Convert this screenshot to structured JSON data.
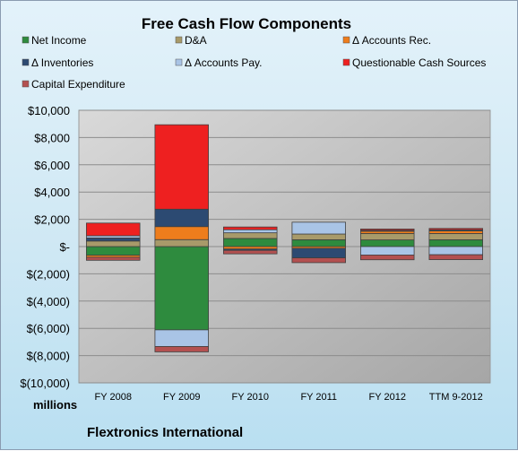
{
  "chart_data": {
    "type": "bar",
    "stacked": true,
    "title": "Free Cash Flow Components",
    "categories": [
      "FY 2008",
      "FY 2009",
      "FY 2010",
      "FY 2011",
      "FY 2012",
      "TTM 9-2012"
    ],
    "ylim": [
      -10000,
      10000
    ],
    "yticks": [
      -10000,
      -8000,
      -6000,
      -4000,
      -2000,
      0,
      2000,
      4000,
      6000,
      8000,
      10000
    ],
    "ytick_labels": [
      "$(10,000)",
      "$(8,000)",
      "$(6,000)",
      "$(4,000)",
      "$(2,000)",
      "$-",
      "$2,000",
      "$4,000",
      "$6,000",
      "$8,000",
      "$10,000"
    ],
    "yunit_label": "millions",
    "grid": true,
    "legend_position": "top",
    "series": [
      {
        "name": "Net Income",
        "color": "#2e8b3e",
        "values": [
          -639,
          -6111,
          596,
          500,
          488,
          500
        ]
      },
      {
        "name": "D&A",
        "color": "#a89a6a",
        "values": [
          406,
          510,
          415,
          420,
          470,
          460
        ]
      },
      {
        "name": "Δ Accounts Rec.",
        "color": "#ee7d1c",
        "values": [
          -147,
          955,
          -180,
          -130,
          170,
          190
        ]
      },
      {
        "name": "Δ Inventories",
        "color": "#2c4a72",
        "values": [
          227,
          1278,
          -100,
          -700,
          70,
          80
        ]
      },
      {
        "name": "Δ Accounts Pay.",
        "color": "#a9c4e6",
        "values": [
          162,
          -1222,
          228,
          868,
          -619,
          -600
        ]
      },
      {
        "name": "Questionable Cash Sources",
        "color": "#ee2020",
        "values": [
          929,
          6196,
          198,
          0,
          90,
          100
        ]
      },
      {
        "name": "Capital Expenditure",
        "color": "#b35050",
        "values": [
          -221,
          -393,
          -255,
          -350,
          -350,
          -360
        ]
      }
    ]
  },
  "footer": {
    "company": "Flextronics International"
  }
}
